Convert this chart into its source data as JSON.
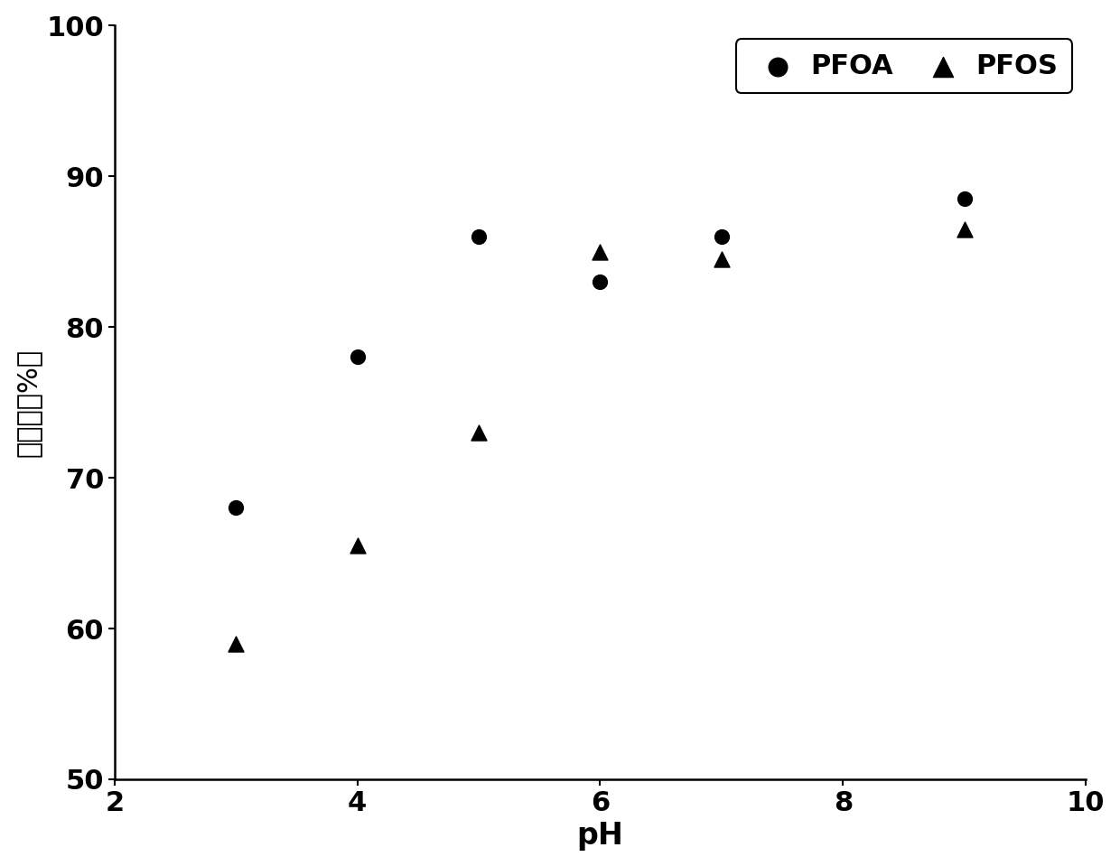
{
  "pfoa_x": [
    3,
    4,
    5,
    6,
    7,
    9
  ],
  "pfoa_y": [
    68,
    78,
    86,
    83,
    86,
    88.5
  ],
  "pfos_x": [
    3,
    4,
    5,
    6,
    7,
    9
  ],
  "pfos_y": [
    59,
    65.5,
    73,
    85,
    84.5,
    86.5
  ],
  "xlabel": "pH",
  "ylabel": "去除率（%）",
  "xlim": [
    2,
    10
  ],
  "ylim": [
    50,
    100
  ],
  "xticks": [
    2,
    4,
    6,
    8,
    10
  ],
  "yticks": [
    50,
    60,
    70,
    80,
    90,
    100
  ],
  "legend_pfoa": "PFOA",
  "legend_pfos": "PFOS",
  "marker_color": "#000000",
  "background_color": "#ffffff",
  "marker_size_circle": 130,
  "marker_size_triangle": 150,
  "xlabel_fontsize": 24,
  "ylabel_fontsize": 22,
  "tick_fontsize": 22,
  "legend_fontsize": 22
}
